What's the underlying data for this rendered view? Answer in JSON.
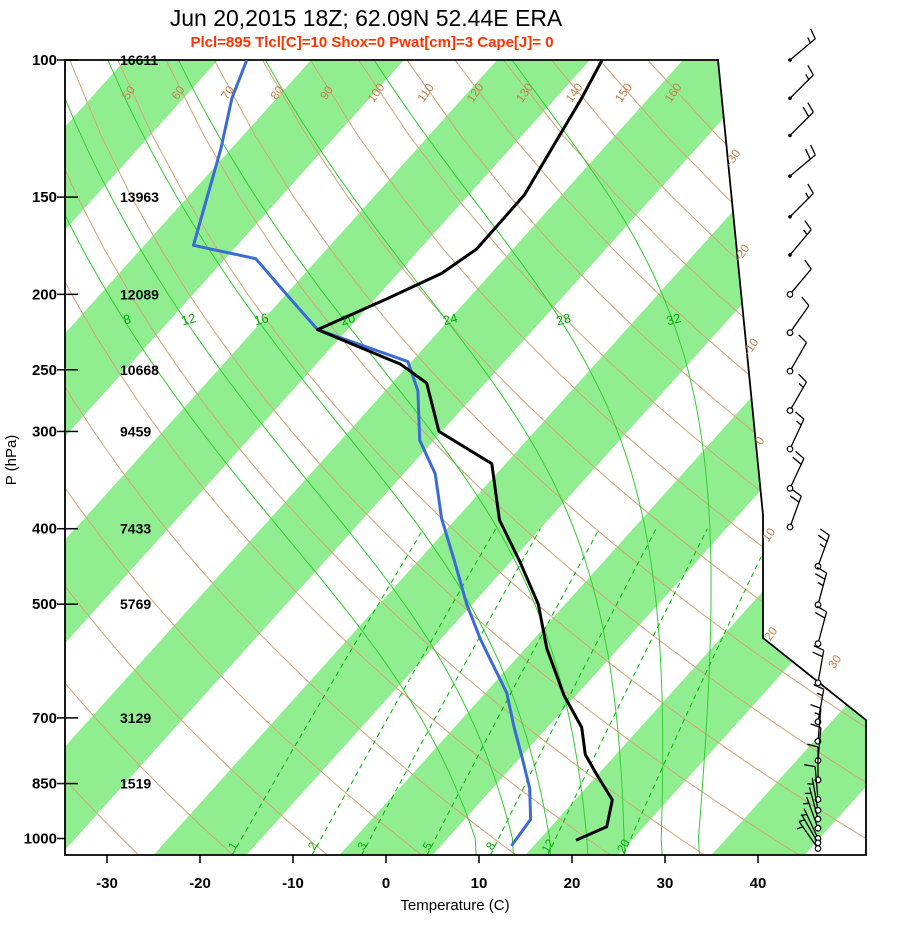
{
  "chart_data": {
    "type": "skewt_log_p_sounding",
    "title": "Jun 20,2015 18Z; 62.09N 52.44E ERA",
    "subtitle": "Plcl=895 Tlcl[C]=10 Shox=0 Pwat[cm]=3 Cape[J]= 0",
    "axes": {
      "xlabel": "Temperature (C)",
      "ylabel": "P (hPa)",
      "pressure_ticks": [
        100,
        150,
        200,
        250,
        300,
        400,
        500,
        700,
        850,
        1000
      ],
      "temp_ticks": [
        -30,
        -20,
        -10,
        0,
        10,
        20,
        30,
        40
      ],
      "pressure_range_hpa": [
        100,
        1050
      ],
      "grid": "skewed isotherm bands every 10C"
    },
    "height_labels": [
      {
        "p": 100,
        "h": "16611"
      },
      {
        "p": 150,
        "h": "13963"
      },
      {
        "p": 200,
        "h": "12089"
      },
      {
        "p": 250,
        "h": "10668"
      },
      {
        "p": 300,
        "h": "9459"
      },
      {
        "p": 400,
        "h": "7433"
      },
      {
        "p": 500,
        "h": "5769"
      },
      {
        "p": 700,
        "h": "3129"
      },
      {
        "p": 850,
        "h": "1519"
      }
    ],
    "isotherm_edge_labels": [
      -30,
      -20,
      -10,
      0,
      10,
      20,
      30
    ],
    "dry_adiabat_labels": [
      50,
      60,
      70,
      80,
      90,
      100,
      110,
      120,
      130,
      140,
      150,
      160
    ],
    "moist_adiabat_labels": [
      8,
      12,
      16,
      20,
      24,
      28,
      32
    ],
    "mixing_ratio_labels": [
      1,
      2,
      3,
      5,
      8,
      12,
      20
    ],
    "temperature_profile": [
      [
        1005,
        19.0
      ],
      [
        966,
        21.0
      ],
      [
        892,
        19.0
      ],
      [
        825,
        14.7
      ],
      [
        780,
        11.7
      ],
      [
        720,
        8.7
      ],
      [
        655,
        3.7
      ],
      [
        570,
        -2.7
      ],
      [
        500,
        -7.9
      ],
      [
        440,
        -14.1
      ],
      [
        390,
        -20.2
      ],
      [
        330,
        -26.5
      ],
      [
        300,
        -35.3
      ],
      [
        260,
        -41.3
      ],
      [
        246,
        -45.9
      ],
      [
        222,
        -58.2
      ],
      [
        203,
        -53.8
      ],
      [
        188,
        -50.3
      ],
      [
        175,
        -48.9
      ],
      [
        149,
        -49.0
      ],
      [
        134,
        -50.2
      ],
      [
        112,
        -52.2
      ],
      [
        100,
        -53.7
      ]
    ],
    "dewpoint_profile": [
      [
        1022,
        12.6
      ],
      [
        945,
        12.1
      ],
      [
        862,
        9.0
      ],
      [
        787,
        5.2
      ],
      [
        716,
        1.2
      ],
      [
        650,
        -2.7
      ],
      [
        589,
        -7.7
      ],
      [
        555,
        -10.7
      ],
      [
        500,
        -15.6
      ],
      [
        440,
        -21.1
      ],
      [
        388,
        -26.6
      ],
      [
        340,
        -31.6
      ],
      [
        308,
        -36.5
      ],
      [
        266,
        -41.5
      ],
      [
        244,
        -45.4
      ],
      [
        222,
        -58.2
      ],
      [
        203,
        -64.0
      ],
      [
        180,
        -71.7
      ],
      [
        173,
        -79.7
      ],
      [
        130,
        -86.1
      ],
      [
        112,
        -89.8
      ],
      [
        100,
        -91.9
      ]
    ],
    "winds": [
      {
        "p": 100,
        "spd": 15,
        "dir": 50
      },
      {
        "p": 112,
        "spd": 15,
        "dir": 45
      },
      {
        "p": 125,
        "spd": 20,
        "dir": 45
      },
      {
        "p": 141,
        "spd": 20,
        "dir": 50
      },
      {
        "p": 159,
        "spd": 15,
        "dir": 45
      },
      {
        "p": 178,
        "spd": 15,
        "dir": 40
      },
      {
        "p": 200,
        "spd": 10,
        "dir": 40
      },
      {
        "p": 224,
        "spd": 10,
        "dir": 35
      },
      {
        "p": 251,
        "spd": 10,
        "dir": 30
      },
      {
        "p": 282,
        "spd": 15,
        "dir": 30
      },
      {
        "p": 316,
        "spd": 15,
        "dir": 25
      },
      {
        "p": 355,
        "spd": 20,
        "dir": 25
      },
      {
        "p": 398,
        "spd": 20,
        "dir": 20
      },
      {
        "p": 447,
        "spd": 25,
        "dir": 20
      },
      {
        "p": 501,
        "spd": 25,
        "dir": 15
      },
      {
        "p": 562,
        "spd": 20,
        "dir": 15
      },
      {
        "p": 631,
        "spd": 20,
        "dir": 10
      },
      {
        "p": 708,
        "spd": 15,
        "dir": 10
      },
      {
        "p": 750,
        "spd": 15,
        "dir": 5
      },
      {
        "p": 794,
        "spd": 10,
        "dir": 5
      },
      {
        "p": 841,
        "spd": 10,
        "dir": 360
      },
      {
        "p": 891,
        "spd": 10,
        "dir": 355
      },
      {
        "p": 920,
        "spd": 5,
        "dir": 350
      },
      {
        "p": 944,
        "spd": 5,
        "dir": 345
      },
      {
        "p": 970,
        "spd": 5,
        "dir": 340
      },
      {
        "p": 1000,
        "spd": 5,
        "dir": 335
      },
      {
        "p": 1013,
        "spd": 5,
        "dir": 330
      },
      {
        "p": 1030,
        "spd": 5,
        "dir": 325
      }
    ],
    "colors": {
      "band_green": "#90ee90",
      "dry_adiabat": "#d2a478",
      "tan_label": "#c3824e",
      "moist_adiabat": "#33cc33",
      "moist_label": "#00aa00",
      "mixing_ratio": "#00b400",
      "temperature": "#000000",
      "dewpoint": "#3b6bd6",
      "stats_red": "#ff3300",
      "frame": "#000000"
    }
  }
}
